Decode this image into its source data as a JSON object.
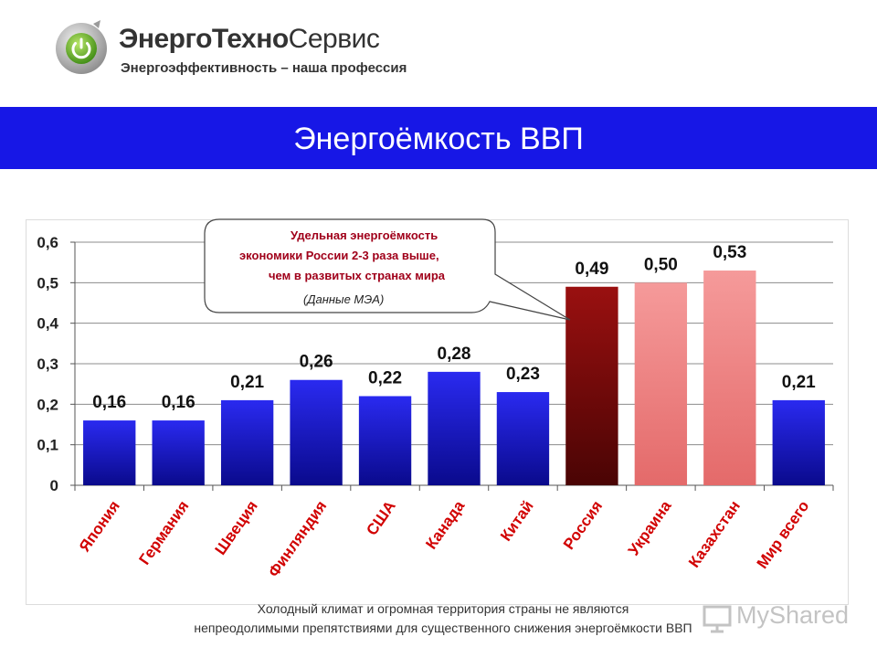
{
  "logo": {
    "icon": "power-button-icon",
    "brand_bold": "ЭнергоТехно",
    "brand_light": "Сервис",
    "slogan": "Энергоэффективность – наша профессия"
  },
  "title": "Энергоёмкость ВВП",
  "callout": {
    "line1": "Удельная энергоёмкость",
    "line2": "экономики России  2-3 раза выше,",
    "line3": "чем в развитых странах мира",
    "source": "(Данные МЭА)"
  },
  "caption": {
    "line1": "Холодный климат и огромная территория страны не являются",
    "line2": "непреодолимыми препятствиями для существенного снижения энергоёмкости ВВП"
  },
  "watermark": {
    "text": "MyShared",
    "icon": "presentation-screen-icon"
  },
  "colors": {
    "title_band": "#1717e6",
    "bar_blue": "#1f1fcc",
    "bar_russia": "#7a0a0a",
    "bar_pink": "#f08080",
    "callout_text": "#a0001a"
  },
  "chart_data": {
    "type": "bar",
    "categories": [
      "Япония",
      "Германия",
      "Швеция",
      "Финляндия",
      "США",
      "Канада",
      "Китай",
      "Россия",
      "Украина",
      "Казахстан",
      "Мир всего"
    ],
    "values": [
      0.16,
      0.16,
      0.21,
      0.26,
      0.22,
      0.28,
      0.23,
      0.49,
      0.5,
      0.53,
      0.21
    ],
    "data_labels": [
      "0,16",
      "0,16",
      "0,21",
      "0,26",
      "0,22",
      "0,28",
      "0,23",
      "0,49",
      "0,50",
      "0,53",
      "0,21"
    ],
    "bar_colors": [
      "blue",
      "blue",
      "blue",
      "blue",
      "blue",
      "blue",
      "blue",
      "dark-red",
      "pink",
      "pink",
      "blue"
    ],
    "ylim": [
      0,
      0.6
    ],
    "yticks": [
      0,
      0.1,
      0.2,
      0.3,
      0.4,
      0.5,
      0.6
    ],
    "ytick_labels": [
      "0",
      "0,1",
      "0,2",
      "0,3",
      "0,4",
      "0,5",
      "0,6"
    ],
    "grid": true,
    "legend": false
  }
}
